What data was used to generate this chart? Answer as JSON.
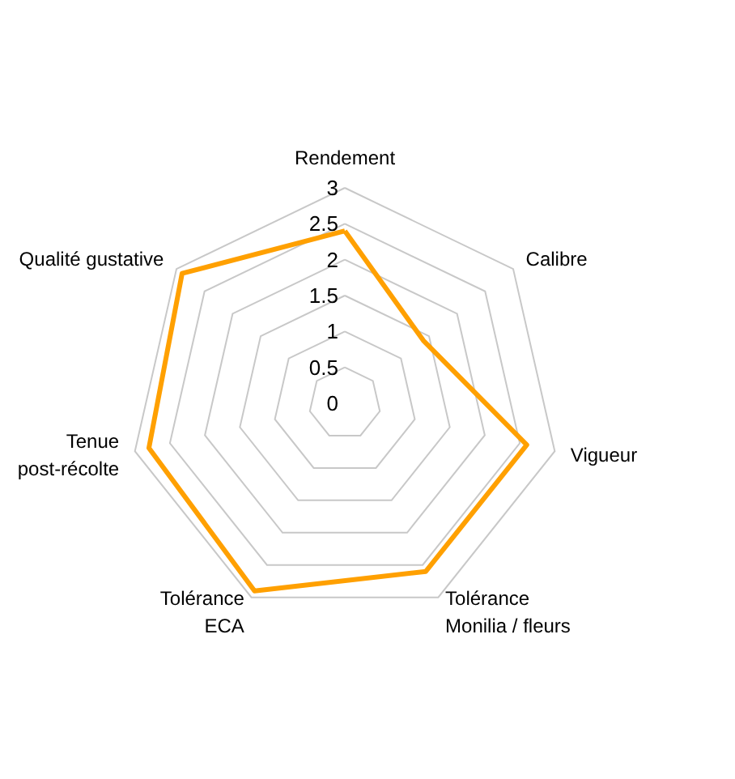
{
  "chart_data": {
    "type": "radar",
    "categories": [
      "Rendement",
      "Calibre",
      "Vigueur",
      "Tolérance\nMonilia / fleurs",
      "Tolérance\nECA",
      "Tenue\npost-récolte",
      "Qualité gustative"
    ],
    "series": [
      {
        "color": "#ffa000",
        "values": [
          2.4,
          1.4,
          2.6,
          2.6,
          2.9,
          2.8,
          2.9
        ]
      }
    ],
    "ylim": [
      0,
      3
    ],
    "yticks": [
      0,
      0.5,
      1,
      1.5,
      2,
      2.5,
      3
    ],
    "grid": true,
    "marker": "none",
    "line_style": "solid"
  }
}
